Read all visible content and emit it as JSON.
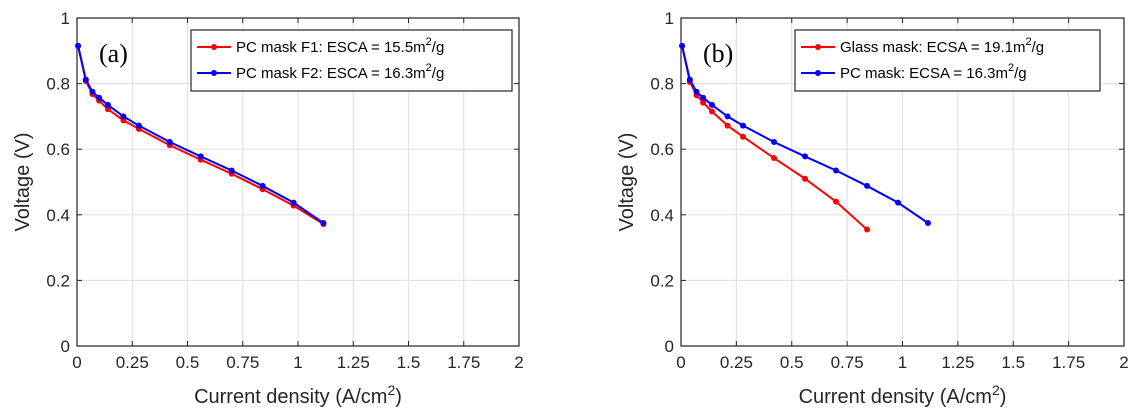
{
  "chart_data": [
    {
      "type": "line",
      "panel_label": "(a)",
      "xlabel": "Current density (A/cm",
      "xlabel_sup": "2",
      "xlabel_end": ")",
      "ylabel": "Voltage (V)",
      "xlim": [
        0,
        2
      ],
      "ylim": [
        0,
        1
      ],
      "xticks": [
        "0",
        "0.25",
        "0.5",
        "0.75",
        "1",
        "1.25",
        "1.5",
        "1.75",
        "2"
      ],
      "yticks": [
        "0",
        "0.2",
        "0.4",
        "0.6",
        "0.8",
        "1"
      ],
      "grid": true,
      "legend_position": "top-right",
      "series": [
        {
          "name": "PC mask F1: ESCA = 15.5m",
          "name_sup": "2",
          "name_end": "/g",
          "color": "#ff0000",
          "x": [
            0.005,
            0.04,
            0.07,
            0.1,
            0.14,
            0.21,
            0.28,
            0.42,
            0.56,
            0.7,
            0.84,
            0.98,
            1.115
          ],
          "y": [
            0.915,
            0.808,
            0.768,
            0.748,
            0.722,
            0.688,
            0.662,
            0.612,
            0.568,
            0.525,
            0.478,
            0.428,
            0.372
          ]
        },
        {
          "name": "PC mask F2: ESCA = 16.3m",
          "name_sup": "2",
          "name_end": "/g",
          "color": "#0000ff",
          "x": [
            0.005,
            0.04,
            0.07,
            0.1,
            0.14,
            0.21,
            0.28,
            0.42,
            0.56,
            0.7,
            0.84,
            0.98,
            1.115
          ],
          "y": [
            0.915,
            0.812,
            0.775,
            0.757,
            0.735,
            0.7,
            0.672,
            0.622,
            0.578,
            0.535,
            0.488,
            0.437,
            0.375
          ]
        }
      ]
    },
    {
      "type": "line",
      "panel_label": "(b)",
      "xlabel": "Current density (A/cm",
      "xlabel_sup": "2",
      "xlabel_end": ")",
      "ylabel": "Voltage (V)",
      "xlim": [
        0,
        2
      ],
      "ylim": [
        0,
        1
      ],
      "xticks": [
        "0",
        "0.25",
        "0.5",
        "0.75",
        "1",
        "1.25",
        "1.5",
        "1.75",
        "2"
      ],
      "yticks": [
        "0",
        "0.2",
        "0.4",
        "0.6",
        "0.8",
        "1"
      ],
      "grid": true,
      "legend_position": "top-right",
      "series": [
        {
          "name": "Glass mask: ECSA = 19.1m",
          "name_sup": "2",
          "name_end": "/g",
          "color": "#ff0000",
          "x": [
            0.005,
            0.04,
            0.07,
            0.1,
            0.14,
            0.21,
            0.28,
            0.42,
            0.56,
            0.7,
            0.84
          ],
          "y": [
            0.915,
            0.805,
            0.765,
            0.742,
            0.715,
            0.672,
            0.638,
            0.573,
            0.51,
            0.44,
            0.355
          ]
        },
        {
          "name": "PC mask: ECSA = 16.3m",
          "name_sup": "2",
          "name_end": "/g",
          "color": "#0000ff",
          "x": [
            0.005,
            0.04,
            0.07,
            0.1,
            0.14,
            0.21,
            0.28,
            0.42,
            0.56,
            0.7,
            0.84,
            0.98,
            1.115
          ],
          "y": [
            0.915,
            0.812,
            0.775,
            0.757,
            0.735,
            0.7,
            0.672,
            0.622,
            0.578,
            0.535,
            0.488,
            0.437,
            0.375
          ]
        }
      ]
    }
  ]
}
